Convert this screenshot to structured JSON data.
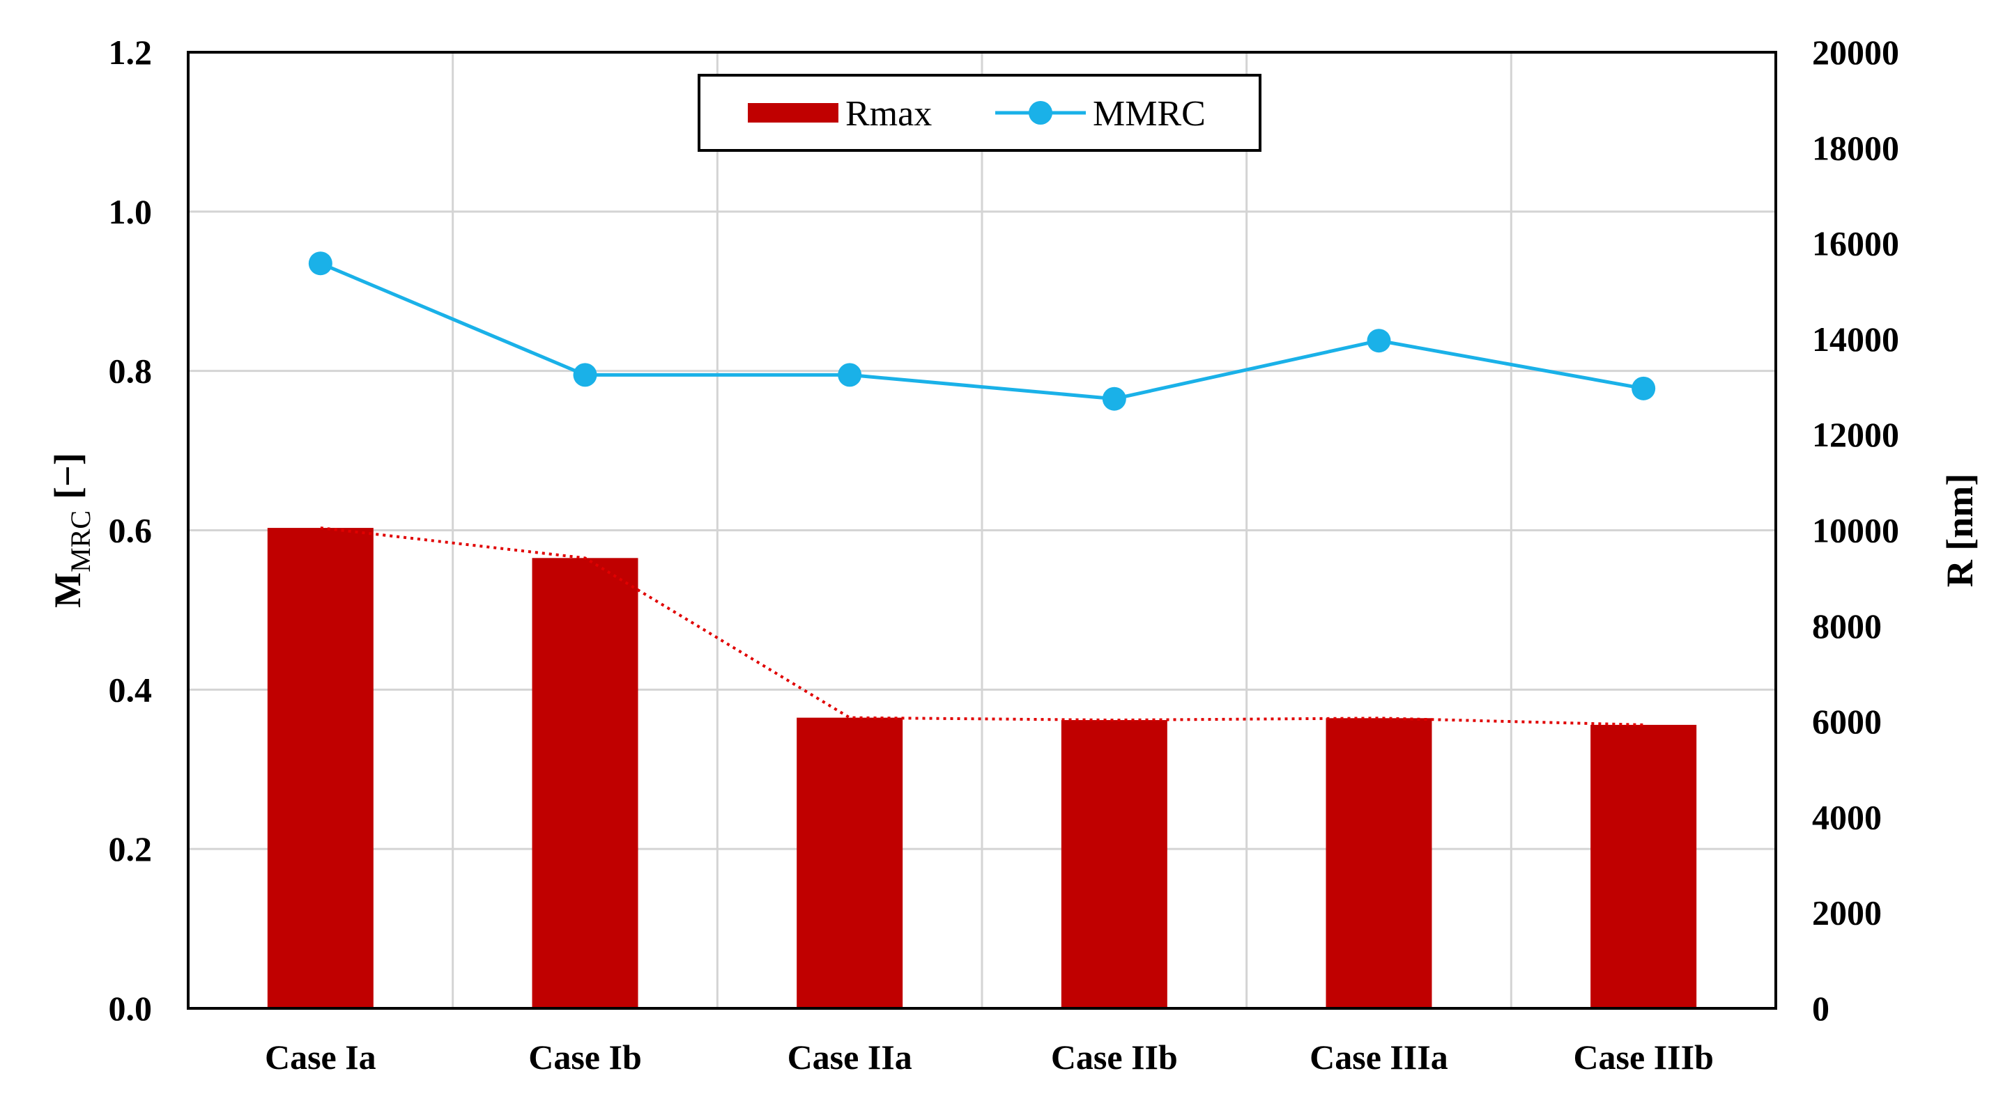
{
  "chart_data": {
    "type": "bar",
    "categories": [
      "Case Ia",
      "Case Ib",
      "Case IIa",
      "Case IIb",
      "Case IIIa",
      "Case IIIb"
    ],
    "series": [
      {
        "name": "Rmax",
        "kind": "bar",
        "axis": "right",
        "color": "#C00000",
        "values": [
          10050,
          9420,
          6080,
          6030,
          6070,
          5930
        ]
      },
      {
        "name": "MMRC",
        "kind": "line",
        "axis": "left",
        "color": "#1AB1E8",
        "values": [
          0.935,
          0.795,
          0.795,
          0.765,
          0.838,
          0.778
        ]
      }
    ],
    "trendline": {
      "of": "Rmax",
      "style": "dotted",
      "color": "#E00000"
    },
    "y_left": {
      "label_main": "M",
      "label_sub": "MRC",
      "label_unit": "[−]",
      "lim": [
        0,
        1.2
      ],
      "ticks": [
        "0.0",
        "0.2",
        "0.4",
        "0.6",
        "0.8",
        "1.0",
        "1.2"
      ]
    },
    "y_right": {
      "label": "R [nm]",
      "lim": [
        0,
        20000
      ],
      "ticks": [
        "0",
        "2000",
        "4000",
        "6000",
        "8000",
        "10000",
        "12000",
        "14000",
        "16000",
        "18000",
        "20000"
      ]
    },
    "grid": true,
    "legend": {
      "placement": "top-center",
      "entries": [
        "Rmax",
        "MMRC"
      ]
    }
  }
}
